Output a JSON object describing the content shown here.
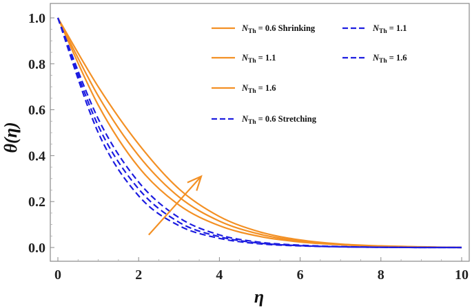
{
  "chart_data": {
    "type": "line",
    "title": "",
    "xlabel": "η",
    "ylabel": "θ(η)",
    "xlim": [
      0,
      10
    ],
    "ylim": [
      0,
      1.05
    ],
    "xticks": [
      "0",
      "2",
      "4",
      "6",
      "8",
      "10"
    ],
    "yticks": [
      "0.0",
      "0.2",
      "0.4",
      "0.6",
      "0.8",
      "1.0"
    ],
    "grid": false,
    "legend_position": "top-right",
    "colors": {
      "shrinking": "#F39024",
      "stretching": "#1C1CE0"
    },
    "series": [
      {
        "name_symbol": "N",
        "name_sub": "Th",
        "name_value": "= 0.6 Shrinking",
        "style": "solid",
        "color": "#F39024",
        "x": [
          0,
          1,
          2,
          3,
          4,
          5,
          6,
          7,
          8,
          9,
          10
        ],
        "y": [
          1.0,
          0.62,
          0.35,
          0.185,
          0.095,
          0.048,
          0.024,
          0.012,
          0.005,
          0.002,
          0.0
        ]
      },
      {
        "name_symbol": "N",
        "name_sub": "Th",
        "name_value": "= 1.1",
        "style": "solid",
        "color": "#F39024",
        "x": [
          0,
          1,
          2,
          3,
          4,
          5,
          6,
          7,
          8,
          9,
          10
        ],
        "y": [
          1.0,
          0.66,
          0.4,
          0.22,
          0.115,
          0.058,
          0.028,
          0.013,
          0.006,
          0.002,
          0.0
        ]
      },
      {
        "name_symbol": "N",
        "name_sub": "Th",
        "name_value": "= 1.6",
        "style": "solid",
        "color": "#F39024",
        "x": [
          0,
          1,
          2,
          3,
          4,
          5,
          6,
          7,
          8,
          9,
          10
        ],
        "y": [
          1.0,
          0.7,
          0.45,
          0.255,
          0.135,
          0.068,
          0.033,
          0.015,
          0.007,
          0.003,
          0.0
        ]
      },
      {
        "name_symbol": "N",
        "name_sub": "Th",
        "name_value": "= 0.6 Stretching",
        "style": "dashed",
        "color": "#1C1CE0",
        "x": [
          0,
          1,
          2,
          3,
          4,
          5,
          6,
          7,
          8,
          9,
          10
        ],
        "y": [
          1.0,
          0.5,
          0.225,
          0.095,
          0.04,
          0.016,
          0.007,
          0.003,
          0.001,
          0.0,
          0.0
        ]
      },
      {
        "name_symbol": "N",
        "name_sub": "Th",
        "name_value": "= 1.1",
        "style": "dashed",
        "color": "#1C1CE0",
        "x": [
          0,
          1,
          2,
          3,
          4,
          5,
          6,
          7,
          8,
          9,
          10
        ],
        "y": [
          1.0,
          0.53,
          0.255,
          0.11,
          0.047,
          0.019,
          0.008,
          0.003,
          0.001,
          0.0,
          0.0
        ]
      },
      {
        "name_symbol": "N",
        "name_sub": "Th",
        "name_value": "= 1.6",
        "style": "dashed",
        "color": "#1C1CE0",
        "x": [
          0,
          1,
          2,
          3,
          4,
          5,
          6,
          7,
          8,
          9,
          10
        ],
        "y": [
          1.0,
          0.56,
          0.285,
          0.13,
          0.055,
          0.023,
          0.01,
          0.004,
          0.001,
          0.0,
          0.0
        ]
      }
    ],
    "annotation_arrow": {
      "from": [
        2.25,
        0.055
      ],
      "to": [
        3.55,
        0.31
      ],
      "color": "#F39024"
    }
  }
}
